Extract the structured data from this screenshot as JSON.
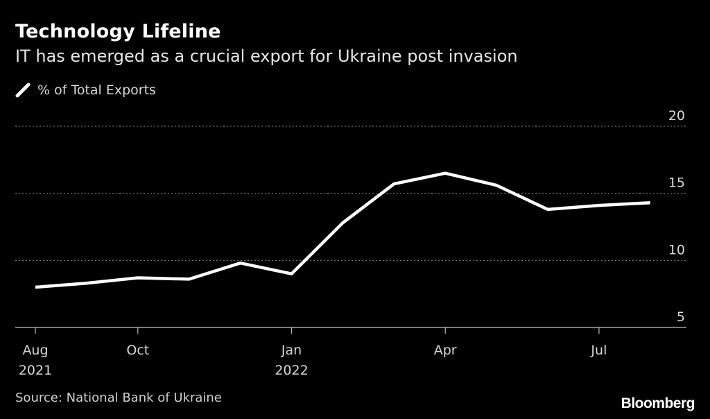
{
  "header": {
    "title": "Technology Lifeline",
    "subtitle": "IT has emerged as a crucial export for Ukraine post invasion"
  },
  "legend": {
    "label": "% of Total Exports"
  },
  "footer": {
    "source": "Source: National Bank of Ukraine",
    "brand": "Bloomberg"
  },
  "colors": {
    "background": "#000000",
    "line": "#ffffff",
    "grid": "#8a8a8a"
  },
  "chart_data": {
    "type": "line",
    "title": "Technology Lifeline",
    "subtitle": "IT has emerged as a crucial export for Ukraine post invasion",
    "xlabel": "",
    "ylabel": "% of Total Exports",
    "ylim": [
      5,
      20
    ],
    "yticks": [
      "20",
      "15",
      "10",
      "5"
    ],
    "x_ticks": [
      {
        "index": 0,
        "line1": "Aug",
        "line2": "2021"
      },
      {
        "index": 2,
        "line1": "Oct",
        "line2": ""
      },
      {
        "index": 5,
        "line1": "Jan",
        "line2": "2022"
      },
      {
        "index": 8,
        "line1": "Apr",
        "line2": ""
      },
      {
        "index": 11,
        "line1": "Jul",
        "line2": ""
      }
    ],
    "series": [
      {
        "name": "% of Total Exports",
        "x": [
          "2021-08",
          "2021-09",
          "2021-10",
          "2021-11",
          "2021-12",
          "2022-01",
          "2022-02",
          "2022-03",
          "2022-04",
          "2022-05",
          "2022-06",
          "2022-07",
          "2022-08"
        ],
        "values": [
          8.0,
          8.3,
          8.7,
          8.6,
          9.8,
          9.0,
          12.8,
          15.7,
          16.5,
          15.6,
          13.8,
          14.1,
          14.3
        ]
      }
    ],
    "grid": true,
    "legend_position": "top-left"
  }
}
